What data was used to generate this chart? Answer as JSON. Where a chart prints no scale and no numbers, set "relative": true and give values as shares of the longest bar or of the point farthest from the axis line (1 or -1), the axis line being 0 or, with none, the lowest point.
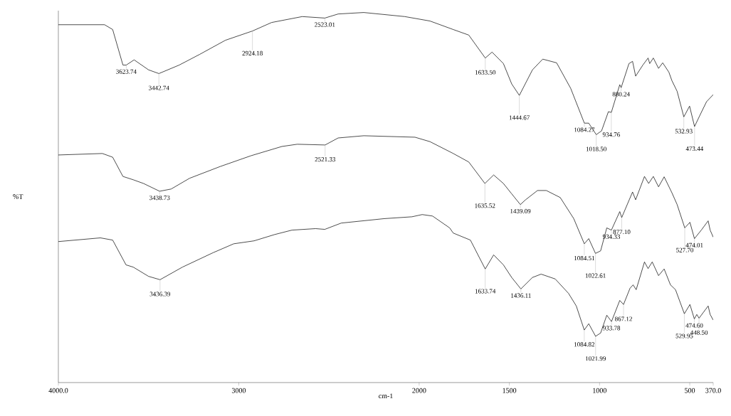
{
  "chart_data": {
    "type": "line",
    "relative": true,
    "xlabel": "cm-1",
    "ylabel": "%T",
    "xlim": [
      4000,
      370
    ],
    "xticks": [
      {
        "value": 4000,
        "label": "4000.0"
      },
      3000,
      2000,
      1500,
      1000,
      500,
      {
        "value": 370,
        "label": "370.0"
      }
    ],
    "series": [
      {
        "color": "#000000",
        "x": [
          4000,
          3744,
          3699,
          3642,
          3623.74,
          3580,
          3500,
          3442.74,
          3330,
          3216,
          3074,
          2924.18,
          2818,
          2648,
          2523.01,
          2449,
          2307,
          2080,
          1940,
          1811,
          1725,
          1633.5,
          1596,
          1533,
          1487,
          1444.67,
          1372,
          1315,
          1238,
          1160,
          1084.27,
          1060,
          1018.5,
          989,
          951,
          934.76,
          888,
          880.24,
          837,
          817,
          800,
          760,
          731,
          722,
          702,
          673,
          650,
          616,
          599,
          570,
          532.93,
          501,
          473.44,
          436,
          407,
          370
        ],
        "values": [
          0.967,
          0.967,
          0.954,
          0.858,
          0.858,
          0.872,
          0.845,
          0.835,
          0.858,
          0.887,
          0.925,
          0.95,
          0.973,
          0.989,
          0.985,
          0.996,
          1.0,
          0.989,
          0.977,
          0.954,
          0.939,
          0.877,
          0.893,
          0.862,
          0.807,
          0.776,
          0.845,
          0.874,
          0.864,
          0.795,
          0.701,
          0.701,
          0.67,
          0.68,
          0.732,
          0.73,
          0.805,
          0.797,
          0.862,
          0.868,
          0.828,
          0.858,
          0.877,
          0.862,
          0.877,
          0.849,
          0.864,
          0.839,
          0.816,
          0.787,
          0.718,
          0.747,
          0.692,
          0.73,
          0.759,
          0.778
        ]
      },
      {
        "color": "#000000",
        "x": [
          4000,
          3756,
          3699,
          3642,
          3585,
          3528,
          3438.73,
          3375,
          3273,
          3102,
          2932,
          2761,
          2676,
          2521.33,
          2449,
          2307,
          2023,
          1940,
          1811,
          1725,
          1635.52,
          1587,
          1533,
          1487,
          1439.09,
          1410,
          1344,
          1295,
          1218,
          1143,
          1084.51,
          1060,
          1022.61,
          994,
          960,
          934.33,
          888,
          877.1,
          817,
          800,
          751,
          728,
          702,
          673,
          642,
          599,
          570,
          527.7,
          499,
          474.01,
          436,
          398,
          387,
          370
        ],
        "values": [
          0.615,
          0.619,
          0.609,
          0.557,
          0.548,
          0.538,
          0.517,
          0.523,
          0.552,
          0.584,
          0.613,
          0.638,
          0.644,
          0.642,
          0.661,
          0.667,
          0.663,
          0.651,
          0.619,
          0.596,
          0.538,
          0.561,
          0.538,
          0.51,
          0.481,
          0.494,
          0.519,
          0.519,
          0.5,
          0.443,
          0.375,
          0.389,
          0.349,
          0.356,
          0.418,
          0.412,
          0.462,
          0.446,
          0.515,
          0.494,
          0.557,
          0.538,
          0.557,
          0.529,
          0.556,
          0.513,
          0.481,
          0.418,
          0.433,
          0.389,
          0.412,
          0.437,
          0.412,
          0.393
        ]
      },
      {
        "color": "#000000",
        "x": [
          4000,
          3767,
          3699,
          3625,
          3585,
          3500,
          3436.39,
          3312,
          3142,
          3028,
          2915,
          2801,
          2705,
          2574,
          2523,
          2432,
          2193,
          2040,
          1983,
          1926,
          1831,
          1811,
          1716,
          1633.74,
          1587,
          1533,
          1487,
          1436.11,
          1372,
          1324,
          1246,
          1172,
          1129,
          1084.82,
          1060,
          1021.99,
          994,
          960,
          933.78,
          888,
          867.12,
          831,
          814,
          797,
          751,
          731,
          708,
          673,
          642,
          607,
          579,
          529.95,
          499,
          474.6,
          461,
          448.5,
          398,
          387,
          370
        ],
        "values": [
          0.381,
          0.391,
          0.385,
          0.318,
          0.312,
          0.287,
          0.278,
          0.312,
          0.351,
          0.375,
          0.383,
          0.4,
          0.412,
          0.416,
          0.414,
          0.431,
          0.443,
          0.448,
          0.454,
          0.45,
          0.418,
          0.404,
          0.385,
          0.307,
          0.345,
          0.318,
          0.284,
          0.253,
          0.284,
          0.293,
          0.28,
          0.241,
          0.207,
          0.142,
          0.159,
          0.125,
          0.134,
          0.182,
          0.165,
          0.222,
          0.211,
          0.255,
          0.264,
          0.251,
          0.326,
          0.308,
          0.326,
          0.289,
          0.307,
          0.264,
          0.251,
          0.186,
          0.211,
          0.172,
          0.184,
          0.174,
          0.207,
          0.184,
          0.169
        ]
      }
    ],
    "annotations": [
      {
        "text": "3623.74",
        "x": 3623.74,
        "y": 0.858
      },
      {
        "text": "3442.74",
        "x": 3442.74,
        "y": 0.835
      },
      {
        "text": "2924.18",
        "x": 2924.18,
        "y": 0.95
      },
      {
        "text": "2523.01",
        "x": 2523.01,
        "y": 0.985
      },
      {
        "text": "1633.50",
        "x": 1633.5,
        "y": 0.877
      },
      {
        "text": "1444.67",
        "x": 1444.67,
        "y": 0.776
      },
      {
        "text": "1084.27",
        "x": 1084.27,
        "y": 0.701
      },
      {
        "text": "1018.50",
        "x": 1018.5,
        "y": 0.67
      },
      {
        "text": "934.76",
        "x": 934.76,
        "y": 0.73
      },
      {
        "text": "880.24",
        "x": 880.24,
        "y": 0.797
      },
      {
        "text": "532.93",
        "x": 532.93,
        "y": 0.718
      },
      {
        "text": "473.44",
        "x": 473.44,
        "y": 0.692
      },
      {
        "text": "3438.73",
        "x": 3438.73,
        "y": 0.517
      },
      {
        "text": "2521.33",
        "x": 2521.33,
        "y": 0.642
      },
      {
        "text": "1635.52",
        "x": 1635.52,
        "y": 0.538
      },
      {
        "text": "1439.09",
        "x": 1439.09,
        "y": 0.481
      },
      {
        "text": "1084.51",
        "x": 1084.51,
        "y": 0.375
      },
      {
        "text": "1022.61",
        "x": 1022.61,
        "y": 0.349
      },
      {
        "text": "934.33",
        "x": 934.33,
        "y": 0.412
      },
      {
        "text": "877.10",
        "x": 877.1,
        "y": 0.446
      },
      {
        "text": "527.70",
        "x": 527.7,
        "y": 0.418
      },
      {
        "text": "474.01",
        "x": 474.01,
        "y": 0.389
      },
      {
        "text": "3436.39",
        "x": 3436.39,
        "y": 0.278
      },
      {
        "text": "1633.74",
        "x": 1633.74,
        "y": 0.307
      },
      {
        "text": "1436.11",
        "x": 1436.11,
        "y": 0.253
      },
      {
        "text": "1084.82",
        "x": 1084.82,
        "y": 0.142
      },
      {
        "text": "1021.99",
        "x": 1021.99,
        "y": 0.125
      },
      {
        "text": "933.78",
        "x": 933.78,
        "y": 0.165
      },
      {
        "text": "867.12",
        "x": 867.12,
        "y": 0.211
      },
      {
        "text": "529.95",
        "x": 529.95,
        "y": 0.186
      },
      {
        "text": "474.60",
        "x": 474.6,
        "y": 0.172
      },
      {
        "text": "448.50",
        "x": 448.5,
        "y": 0.174
      }
    ]
  }
}
